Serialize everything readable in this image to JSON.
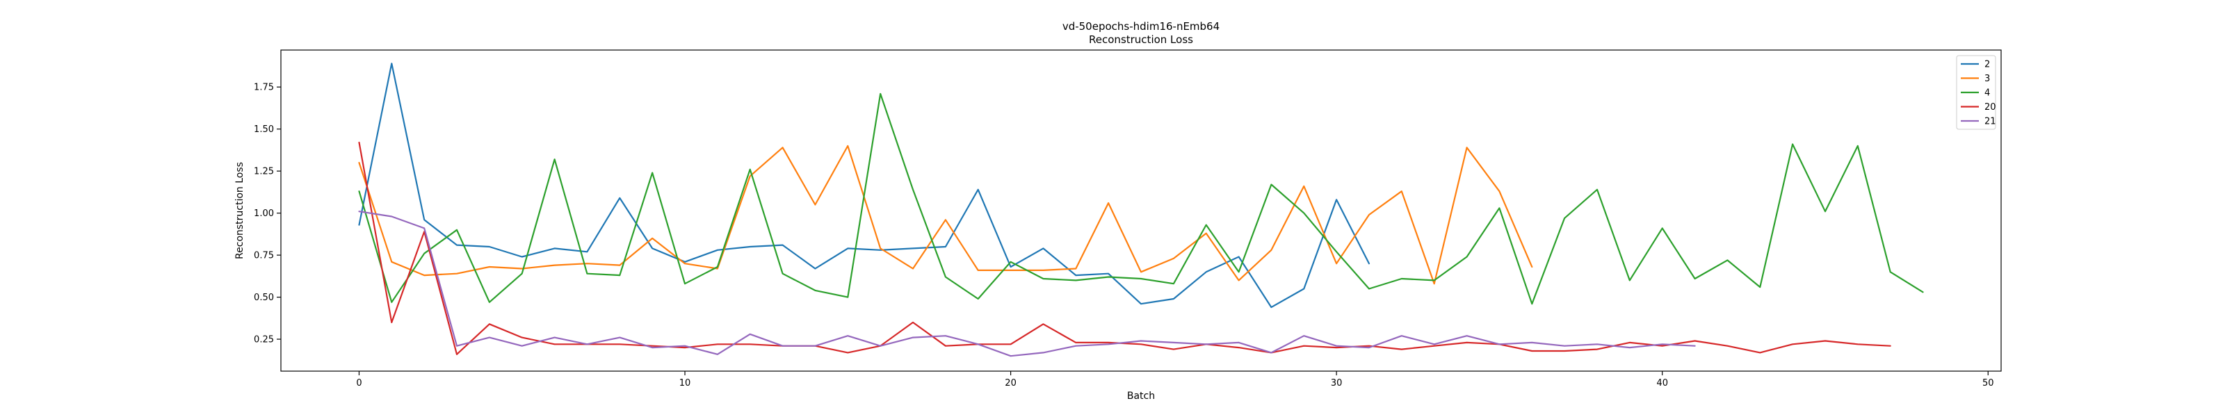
{
  "chart_data": {
    "type": "line",
    "title": "vd-50epochs-hdim16-nEmb64",
    "subtitle": "Reconstruction Loss",
    "xlabel": "Batch",
    "ylabel": "Reconstruction Loss",
    "xlim": [
      -2.4,
      50.4
    ],
    "ylim": [
      0.06,
      1.97
    ],
    "xticks": [
      0,
      10,
      20,
      30,
      40,
      50
    ],
    "yticks": [
      0.25,
      0.5,
      0.75,
      1.0,
      1.25,
      1.5,
      1.75
    ],
    "xtick_labels": [
      "0",
      "10",
      "20",
      "30",
      "40",
      "50"
    ],
    "ytick_labels": [
      "0.25",
      "0.50",
      "0.75",
      "1.00",
      "1.25",
      "1.50",
      "1.75"
    ],
    "grid": false,
    "legend_position": "top-right",
    "series": [
      {
        "name": "2",
        "color": "#1f77b4",
        "x": [
          0,
          1,
          2,
          3,
          4,
          5,
          6,
          7,
          8,
          9,
          10,
          11,
          12,
          13,
          14,
          15,
          16,
          17,
          18,
          19,
          20,
          21,
          22,
          23,
          24,
          25,
          26,
          27,
          28,
          29,
          30,
          31
        ],
        "y": [
          0.93,
          1.89,
          0.96,
          0.81,
          0.8,
          0.74,
          0.79,
          0.77,
          1.09,
          0.79,
          0.71,
          0.78,
          0.8,
          0.81,
          0.67,
          0.79,
          0.78,
          0.79,
          0.8,
          1.14,
          0.68,
          0.79,
          0.63,
          0.64,
          0.46,
          0.49,
          0.65,
          0.74,
          0.44,
          0.55,
          1.08,
          0.7
        ]
      },
      {
        "name": "3",
        "color": "#ff7f0e",
        "x": [
          0,
          1,
          2,
          3,
          4,
          5,
          6,
          7,
          8,
          9,
          10,
          11,
          12,
          13,
          14,
          15,
          16,
          17,
          18,
          19,
          20,
          21,
          22,
          23,
          24,
          25,
          26,
          27,
          28,
          29,
          30,
          31,
          32,
          33,
          34,
          35,
          36
        ],
        "y": [
          1.3,
          0.71,
          0.63,
          0.64,
          0.68,
          0.67,
          0.69,
          0.7,
          0.69,
          0.85,
          0.7,
          0.67,
          1.22,
          1.39,
          1.05,
          1.4,
          0.79,
          0.67,
          0.96,
          0.66,
          0.66,
          0.66,
          0.67,
          1.06,
          0.65,
          0.73,
          0.88,
          0.6,
          0.78,
          1.16,
          0.7,
          0.99,
          1.13,
          0.58,
          1.39,
          1.13,
          0.68
        ]
      },
      {
        "name": "4",
        "color": "#2ca02c",
        "x": [
          0,
          1,
          2,
          3,
          4,
          5,
          6,
          7,
          8,
          9,
          10,
          11,
          12,
          13,
          14,
          15,
          16,
          17,
          18,
          19,
          20,
          21,
          22,
          23,
          24,
          25,
          26,
          27,
          28,
          29,
          30,
          31,
          32,
          33,
          34,
          35,
          36,
          37,
          38,
          39,
          40,
          41,
          42,
          43,
          44,
          45,
          46,
          47,
          48
        ],
        "y": [
          1.13,
          0.47,
          0.76,
          0.9,
          0.47,
          0.64,
          1.32,
          0.64,
          0.63,
          1.24,
          0.58,
          0.68,
          1.26,
          0.64,
          0.54,
          0.5,
          1.71,
          1.14,
          0.62,
          0.49,
          0.71,
          0.61,
          0.6,
          0.62,
          0.61,
          0.58,
          0.93,
          0.65,
          1.17,
          1.0,
          0.77,
          0.55,
          0.61,
          0.6,
          0.74,
          1.03,
          0.46,
          0.97,
          1.14,
          0.6,
          0.91,
          0.61,
          0.72,
          0.56,
          1.41,
          1.01,
          1.4,
          0.65,
          0.53
        ]
      },
      {
        "name": "20",
        "color": "#d62728",
        "x": [
          0,
          1,
          2,
          3,
          4,
          5,
          6,
          7,
          8,
          9,
          10,
          11,
          12,
          13,
          14,
          15,
          16,
          17,
          18,
          19,
          20,
          21,
          22,
          23,
          24,
          25,
          26,
          27,
          28,
          29,
          30,
          31,
          32,
          33,
          34,
          35,
          36,
          37,
          38,
          39,
          40,
          41,
          42,
          43,
          44,
          45,
          46,
          47
        ],
        "y": [
          1.42,
          0.35,
          0.89,
          0.16,
          0.34,
          0.26,
          0.22,
          0.22,
          0.22,
          0.21,
          0.2,
          0.22,
          0.22,
          0.21,
          0.21,
          0.17,
          0.21,
          0.35,
          0.21,
          0.22,
          0.22,
          0.34,
          0.23,
          0.23,
          0.22,
          0.19,
          0.22,
          0.2,
          0.17,
          0.21,
          0.2,
          0.21,
          0.19,
          0.21,
          0.23,
          0.22,
          0.18,
          0.18,
          0.19,
          0.23,
          0.21,
          0.24,
          0.21,
          0.17,
          0.22,
          0.24,
          0.22,
          0.21
        ]
      },
      {
        "name": "21",
        "color": "#9467bd",
        "x": [
          0,
          1,
          2,
          3,
          4,
          5,
          6,
          7,
          8,
          9,
          10,
          11,
          12,
          13,
          14,
          15,
          16,
          17,
          18,
          19,
          20,
          21,
          22,
          23,
          24,
          25,
          26,
          27,
          28,
          29,
          30,
          31,
          32,
          33,
          34,
          35,
          36,
          37,
          38,
          39,
          40,
          41
        ],
        "y": [
          1.01,
          0.98,
          0.91,
          0.21,
          0.26,
          0.21,
          0.26,
          0.22,
          0.26,
          0.2,
          0.21,
          0.16,
          0.28,
          0.21,
          0.21,
          0.27,
          0.21,
          0.26,
          0.27,
          0.22,
          0.15,
          0.17,
          0.21,
          0.22,
          0.24,
          0.23,
          0.22,
          0.23,
          0.17,
          0.27,
          0.21,
          0.2,
          0.27,
          0.22,
          0.27,
          0.22,
          0.23,
          0.21,
          0.22,
          0.2,
          0.22,
          0.21
        ]
      }
    ]
  }
}
